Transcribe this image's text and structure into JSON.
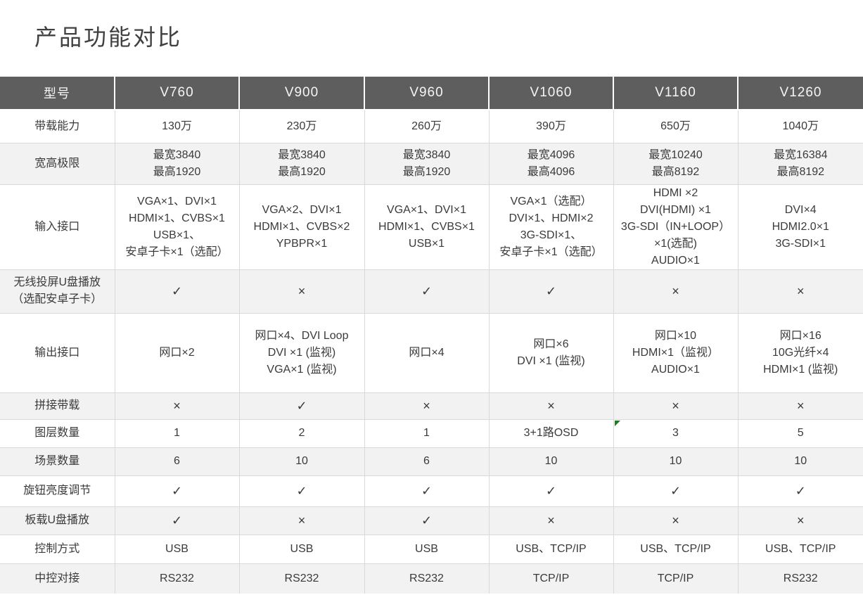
{
  "title": "产品功能对比",
  "colors": {
    "header_bg": "#5e5e5e",
    "header_text": "#f5f5f5",
    "row_alt_bg": "#f2f2f2",
    "border": "#d9d9d9",
    "text": "#3a3a3a",
    "marker_green": "#1e7d1e"
  },
  "table": {
    "header": {
      "first": "型号",
      "models": [
        "V760",
        "V900",
        "V960",
        "V1060",
        "V1160",
        "V1260"
      ]
    },
    "rows": [
      {
        "label_lines": [
          "带载能力"
        ],
        "cells": [
          [
            "130万"
          ],
          [
            "230万"
          ],
          [
            "260万"
          ],
          [
            "390万"
          ],
          [
            "650万"
          ],
          [
            "1040万"
          ]
        ]
      },
      {
        "label_lines": [
          "宽高极限"
        ],
        "cells": [
          [
            "最宽3840",
            "最高1920"
          ],
          [
            "最宽3840",
            "最高1920"
          ],
          [
            "最宽3840",
            "最高1920"
          ],
          [
            "最宽4096",
            "最高4096"
          ],
          [
            "最宽10240",
            "最高8192"
          ],
          [
            "最宽16384",
            "最高8192"
          ]
        ]
      },
      {
        "label_lines": [
          "输入接口"
        ],
        "cells": [
          [
            "VGA×1、DVI×1",
            "HDMI×1、CVBS×1",
            "USB×1、",
            "安卓子卡×1（选配）"
          ],
          [
            "VGA×2、DVI×1",
            "HDMI×1、CVBS×2",
            "YPBPR×1"
          ],
          [
            "VGA×1、DVI×1",
            "HDMI×1、CVBS×1",
            "USB×1"
          ],
          [
            "VGA×1（选配）",
            "DVI×1、HDMI×2",
            "3G-SDI×1、",
            "安卓子卡×1（选配）"
          ],
          [
            "HDMI ×2",
            "DVI(HDMI) ×1",
            "3G-SDI（IN+LOOP）",
            "×1(选配)",
            "AUDIO×1"
          ],
          [
            "DVI×4",
            "HDMI2.0×1",
            "3G-SDI×1"
          ]
        ]
      },
      {
        "label_lines": [
          "无线投屏U盘播放",
          "（选配安卓子卡）"
        ],
        "cells": [
          [
            "✓"
          ],
          [
            "×"
          ],
          [
            "✓"
          ],
          [
            "✓"
          ],
          [
            "×"
          ],
          [
            "×"
          ]
        ]
      },
      {
        "label_lines": [
          "输出接口"
        ],
        "cells": [
          [
            "网口×2"
          ],
          [
            "网口×4、DVI Loop",
            "DVI ×1 (监视)",
            "VGA×1 (监视)"
          ],
          [
            "网口×4"
          ],
          [
            "网口×6",
            "DVI ×1 (监视)"
          ],
          [
            "网口×10",
            "HDMI×1（监视）",
            "AUDIO×1"
          ],
          [
            "网口×16",
            "10G光纤×4",
            "HDMI×1 (监视)"
          ]
        ]
      },
      {
        "label_lines": [
          "拼接带载"
        ],
        "cells": [
          [
            "×"
          ],
          [
            "✓"
          ],
          [
            "×"
          ],
          [
            "×"
          ],
          [
            "×"
          ],
          [
            "×"
          ]
        ]
      },
      {
        "label_lines": [
          "图层数量"
        ],
        "cells": [
          [
            "1"
          ],
          [
            "2"
          ],
          [
            "1"
          ],
          [
            "3+1路OSD"
          ],
          [
            "3"
          ],
          [
            "5"
          ]
        ],
        "marker_cell": 4
      },
      {
        "label_lines": [
          "场景数量"
        ],
        "cells": [
          [
            "6"
          ],
          [
            "10"
          ],
          [
            "6"
          ],
          [
            "10"
          ],
          [
            "10"
          ],
          [
            "10"
          ]
        ]
      },
      {
        "label_lines": [
          "旋钮亮度调节"
        ],
        "cells": [
          [
            "✓"
          ],
          [
            "✓"
          ],
          [
            "✓"
          ],
          [
            "✓"
          ],
          [
            "✓"
          ],
          [
            "✓"
          ]
        ]
      },
      {
        "label_lines": [
          "板载U盘播放"
        ],
        "cells": [
          [
            "✓"
          ],
          [
            "×"
          ],
          [
            "✓"
          ],
          [
            "×"
          ],
          [
            "×"
          ],
          [
            "×"
          ]
        ]
      },
      {
        "label_lines": [
          "控制方式"
        ],
        "cells": [
          [
            "USB"
          ],
          [
            "USB"
          ],
          [
            "USB"
          ],
          [
            "USB、TCP/IP"
          ],
          [
            "USB、TCP/IP"
          ],
          [
            "USB、TCP/IP"
          ]
        ]
      },
      {
        "label_lines": [
          "中控对接"
        ],
        "cells": [
          [
            "RS232"
          ],
          [
            "RS232"
          ],
          [
            "RS232"
          ],
          [
            "TCP/IP"
          ],
          [
            "TCP/IP"
          ],
          [
            "RS232"
          ]
        ]
      }
    ]
  }
}
